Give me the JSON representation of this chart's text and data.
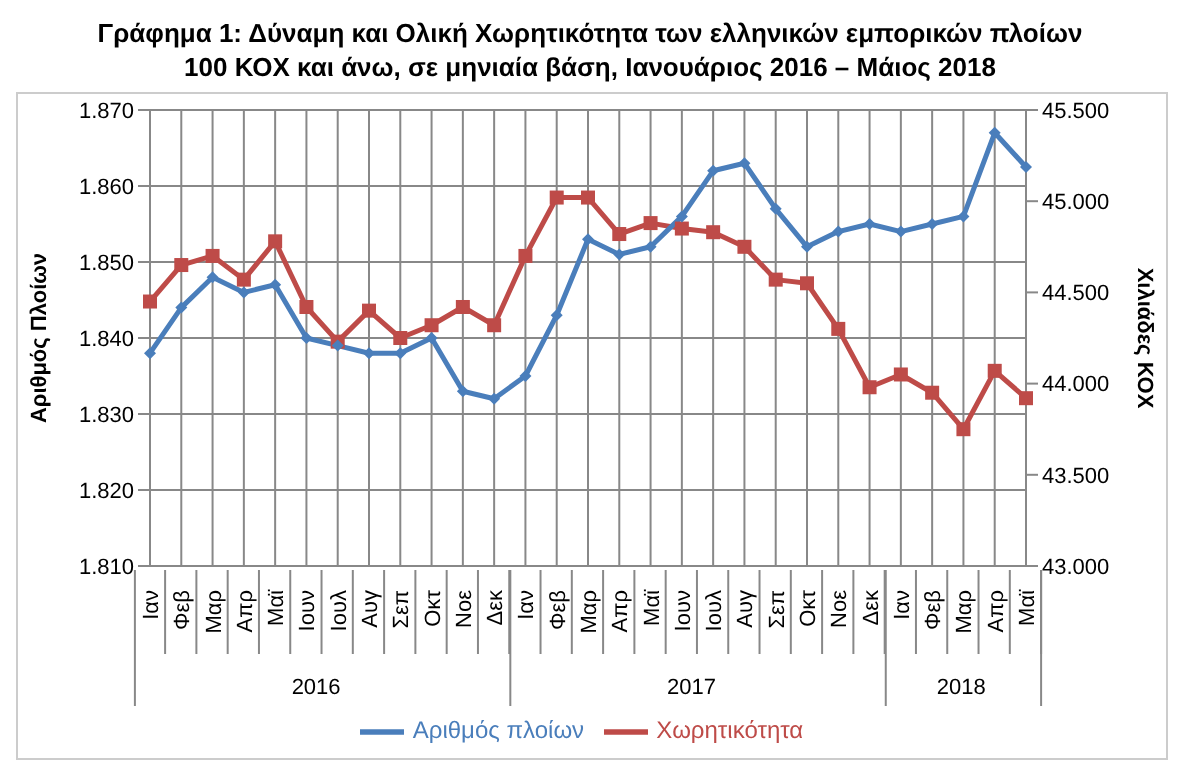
{
  "chart_data": {
    "type": "line",
    "title": "Γράφημα 1: Δύναμη και Ολική Χωρητικότητα των ελληνικών εμπορικών πλοίων 100 ΚΟΧ και άνω, σε μηνιαία βάση, Ιανουάριος  2016 – Μάιος  2018",
    "ylabel": "Αριθμός Πλοίων",
    "y2label": "Χιλιάδες ΚΟΧ",
    "categories": [
      "Ιαν",
      "Φεβ",
      "Μαρ",
      "Απρ",
      "Μαϊ",
      "Ιουν",
      "Ιουλ",
      "Αυγ",
      "Σεπ",
      "Οκτ",
      "Νοε",
      "Δεκ",
      "Ιαν",
      "Φεβ",
      "Μαρ",
      "Απρ",
      "Μαϊ",
      "Ιουν",
      "Ιουλ",
      "Αυγ",
      "Σεπ",
      "Οκτ",
      "Νοε",
      "Δεκ",
      "Ιαν",
      "Φεβ",
      "Μαρ",
      "Απρ",
      "Μαϊ"
    ],
    "annotations": [
      "2016",
      "2017",
      "2018"
    ],
    "series": [
      {
        "name": "Αριθμός πλοίων",
        "color": "#4a7ebb",
        "marker": "diamond",
        "values": [
          1.838,
          1.844,
          1.848,
          1.846,
          1.847,
          1.84,
          1.839,
          1.838,
          1.838,
          1.84,
          1.833,
          1.832,
          1.835,
          1.843,
          1.853,
          1.851,
          1.852,
          1.856,
          1.862,
          1.863,
          1.857,
          1.852,
          1.854,
          1.855,
          1.854,
          1.855,
          1.856,
          1.867,
          1.8625
        ]
      },
      {
        "name": "Χωρητικότητα",
        "color": "#be4b48",
        "marker": "square",
        "axis": "y2",
        "values": [
          44450,
          44650,
          44700,
          44570,
          44780,
          44420,
          44230,
          44400,
          44250,
          44320,
          44420,
          44320,
          44700,
          45020,
          45020,
          44820,
          44880,
          44850,
          44830,
          44750,
          44570,
          44550,
          44300,
          43980,
          44050,
          43950,
          43750,
          44070,
          43920
        ]
      }
    ],
    "ylim": [
      1.81,
      1.87
    ],
    "yticks": [
      {
        "value": 1.81,
        "label": "1.810"
      },
      {
        "value": 1.82,
        "label": "1.820"
      },
      {
        "value": 1.83,
        "label": "1.830"
      },
      {
        "value": 1.84,
        "label": "1.840"
      },
      {
        "value": 1.85,
        "label": "1.850"
      },
      {
        "value": 1.86,
        "label": "1.860"
      },
      {
        "value": 1.87,
        "label": "1.870"
      }
    ],
    "y2lim": [
      43000,
      45500
    ],
    "y2ticks": [
      {
        "value": 43000,
        "label": "43.000"
      },
      {
        "value": 43500,
        "label": "43.500"
      },
      {
        "value": 44000,
        "label": "44.000"
      },
      {
        "value": 44500,
        "label": "44.500"
      },
      {
        "value": 45000,
        "label": "45.000"
      },
      {
        "value": 45500,
        "label": "45.500"
      }
    ],
    "grid": true,
    "legend": "bottom",
    "line_style": "solid"
  }
}
